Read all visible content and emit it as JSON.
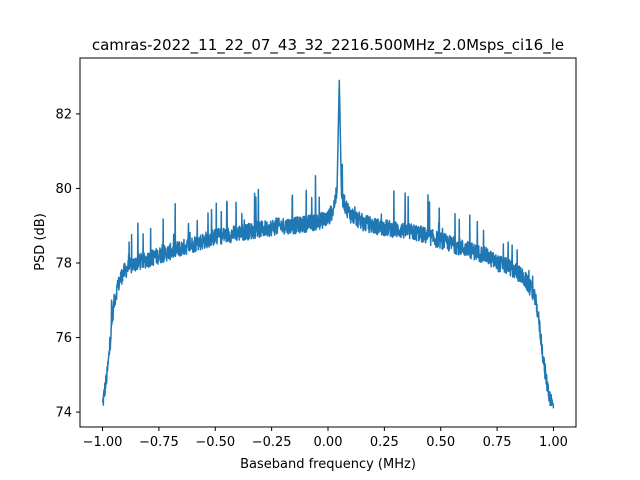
{
  "chart_data": {
    "type": "line",
    "title": "camras-2022_11_22_07_43_32_2216.500MHz_2.0Msps_ci16_le",
    "xlabel": "Baseband frequency (MHz)",
    "ylabel": "PSD (dB)",
    "xlim": [
      -1.1,
      1.1
    ],
    "ylim": [
      73.6,
      83.5
    ],
    "x_ticks": [
      -1.0,
      -0.75,
      -0.5,
      -0.25,
      0.0,
      0.25,
      0.5,
      0.75,
      1.0
    ],
    "x_tick_labels": [
      "−1.00",
      "−0.75",
      "−0.50",
      "−0.25",
      "0.00",
      "0.25",
      "0.50",
      "0.75",
      "1.00"
    ],
    "y_ticks": [
      74,
      76,
      78,
      80,
      82
    ],
    "y_tick_labels": [
      "74",
      "76",
      "78",
      "80",
      "82"
    ],
    "grid": false,
    "legend": "none",
    "series": [
      {
        "color": "#1f77b4",
        "x": [
          -1.0,
          -0.99,
          -0.98,
          -0.97,
          -0.96,
          -0.95,
          -0.94,
          -0.93,
          -0.92,
          -0.9,
          -0.88,
          -0.85,
          -0.8,
          -0.75,
          -0.7,
          -0.65,
          -0.6,
          -0.55,
          -0.5,
          -0.45,
          -0.4,
          -0.35,
          -0.3,
          -0.25,
          -0.2,
          -0.15,
          -0.1,
          -0.05,
          0.0,
          0.02,
          0.04,
          0.05,
          0.06,
          0.08,
          0.1,
          0.15,
          0.2,
          0.25,
          0.3,
          0.35,
          0.4,
          0.45,
          0.5,
          0.55,
          0.6,
          0.65,
          0.7,
          0.75,
          0.8,
          0.85,
          0.88,
          0.9,
          0.92,
          0.93,
          0.94,
          0.95,
          0.96,
          0.97,
          0.98,
          0.99,
          1.0
        ],
        "y": [
          74.2,
          74.6,
          75.0,
          75.6,
          76.3,
          76.9,
          77.2,
          77.4,
          77.6,
          77.8,
          77.9,
          78.0,
          78.1,
          78.2,
          78.3,
          78.4,
          78.5,
          78.6,
          78.7,
          78.75,
          78.8,
          78.85,
          78.9,
          78.95,
          79.0,
          79.0,
          79.05,
          79.1,
          79.2,
          79.4,
          79.9,
          82.9,
          79.8,
          79.5,
          79.3,
          79.1,
          79.0,
          78.95,
          78.9,
          78.85,
          78.8,
          78.7,
          78.6,
          78.5,
          78.4,
          78.3,
          78.2,
          78.0,
          77.9,
          77.7,
          77.5,
          77.3,
          77.0,
          76.7,
          76.2,
          75.7,
          75.2,
          74.8,
          74.5,
          74.3,
          74.1
        ]
      }
    ]
  }
}
